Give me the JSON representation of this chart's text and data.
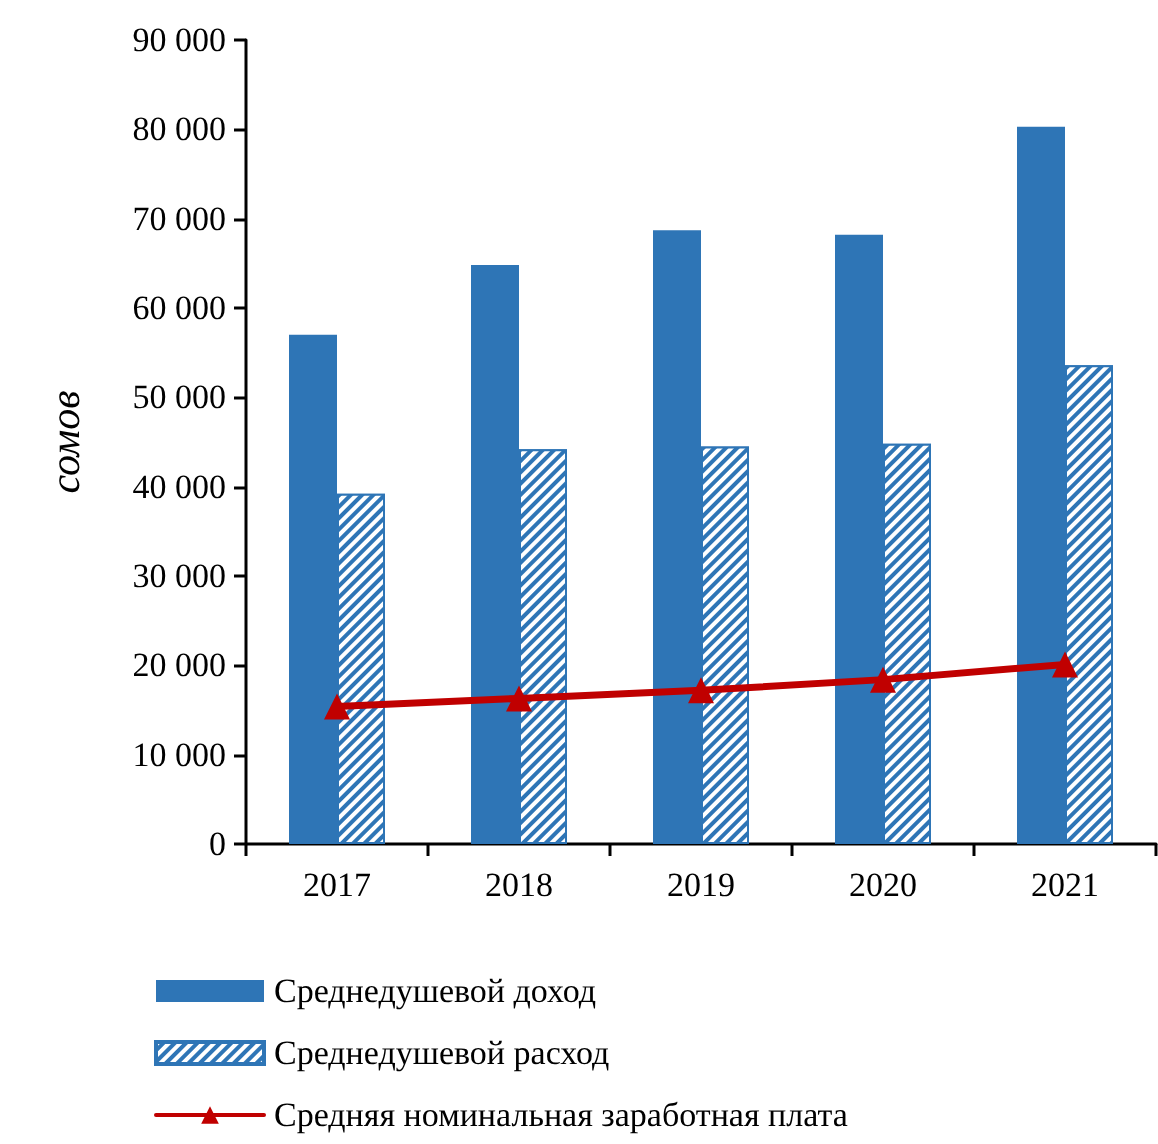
{
  "chart_data": {
    "type": "bar",
    "categories": [
      "2017",
      "2018",
      "2019",
      "2020",
      "2021"
    ],
    "series": [
      {
        "name": "Среднедушевой доход",
        "color": "#2e75b6",
        "values": [
          57000,
          64800,
          68700,
          68200,
          80300
        ]
      },
      {
        "name": "Среднедушевой расход",
        "color": "#2e75b6",
        "values": [
          39200,
          44200,
          44500,
          44800,
          53600
        ]
      },
      {
        "name": "Средняя номинальная заработная плата",
        "type": "line",
        "color": "#c00000",
        "values": [
          15400,
          16300,
          17200,
          18400,
          20100
        ]
      }
    ],
    "ylabel": "сомов",
    "ylim": [
      0,
      90000
    ],
    "yticks": [
      {
        "value": 0,
        "label": "0"
      },
      {
        "value": 10000,
        "label": "10 000"
      },
      {
        "value": 20000,
        "label": "20 000"
      },
      {
        "value": 30000,
        "label": "30 000"
      },
      {
        "value": 40000,
        "label": "40 000"
      },
      {
        "value": 50000,
        "label": "50 000"
      },
      {
        "value": 60000,
        "label": "60 000"
      },
      {
        "value": 70000,
        "label": "70 000"
      },
      {
        "value": 80000,
        "label": "80 000"
      },
      {
        "value": 90000,
        "label": "90 000"
      }
    ],
    "grid": false,
    "legend": "bottom",
    "marker": "triangle",
    "line_style": "solid"
  }
}
